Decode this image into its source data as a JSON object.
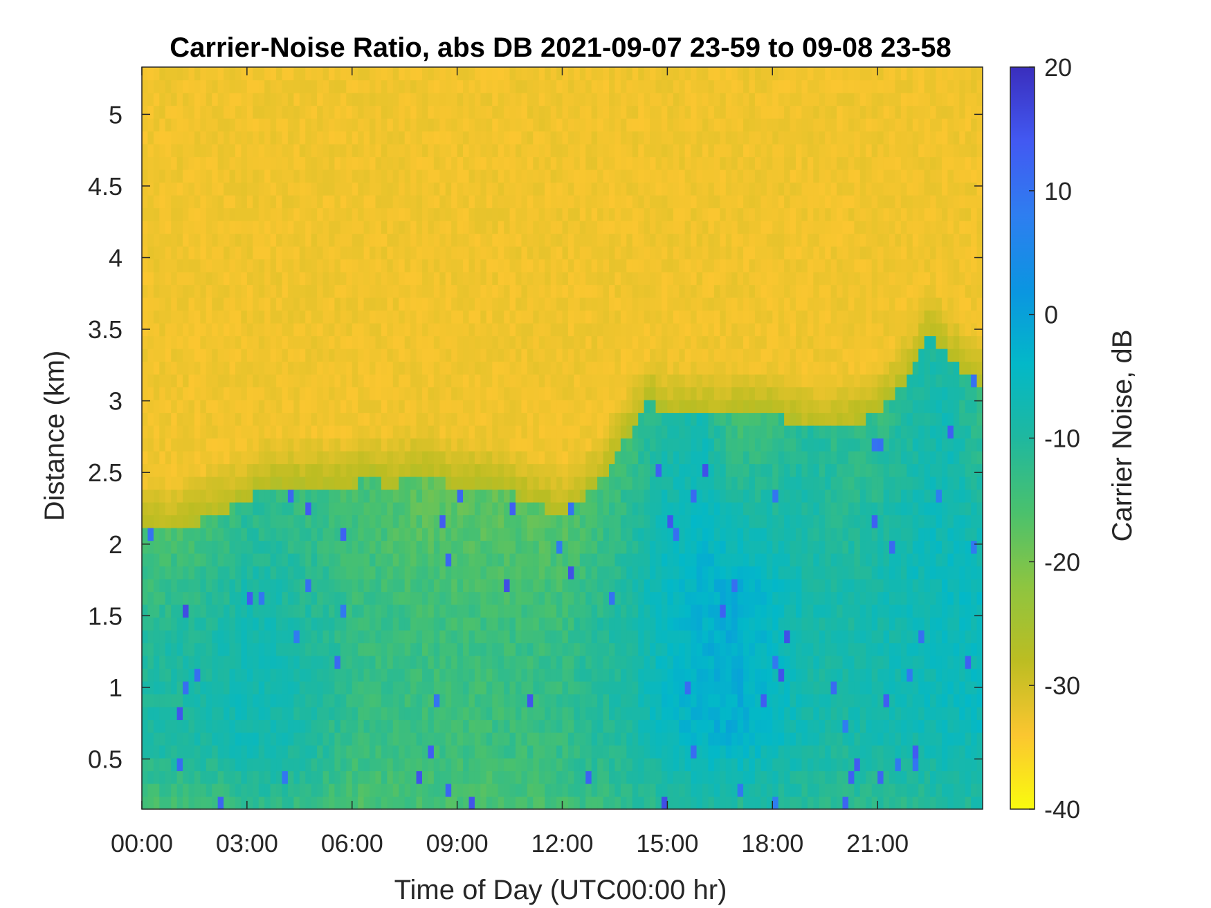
{
  "chart_data": {
    "type": "heatmap",
    "title": "Carrier-Noise Ratio, abs DB 2021-09-07 23-59 to 09-08 23-58",
    "xlabel": "Time of Day (UTC00:00 hr)",
    "ylabel": "Distance (km)",
    "colorbar_label": "Carrier Noise, dB",
    "x_range_hours": [
      0,
      24
    ],
    "y_range_km": [
      0.15,
      5.33
    ],
    "color_range_db": [
      -40,
      20
    ],
    "x_ticks": [
      {
        "hour": 0,
        "label": "00:00"
      },
      {
        "hour": 3,
        "label": "03:00"
      },
      {
        "hour": 6,
        "label": "06:00"
      },
      {
        "hour": 9,
        "label": "09:00"
      },
      {
        "hour": 12,
        "label": "12:00"
      },
      {
        "hour": 15,
        "label": "15:00"
      },
      {
        "hour": 18,
        "label": "18:00"
      },
      {
        "hour": 21,
        "label": "21:00"
      }
    ],
    "y_ticks": [
      {
        "km": 0.5,
        "label": "0.5"
      },
      {
        "km": 1,
        "label": "1"
      },
      {
        "km": 1.5,
        "label": "1.5"
      },
      {
        "km": 2,
        "label": "2"
      },
      {
        "km": 2.5,
        "label": "2.5"
      },
      {
        "km": 3,
        "label": "3"
      },
      {
        "km": 3.5,
        "label": "3.5"
      },
      {
        "km": 4,
        "label": "4"
      },
      {
        "km": 4.5,
        "label": "4.5"
      },
      {
        "km": 5,
        "label": "5"
      }
    ],
    "colorbar_ticks": [
      {
        "db": 20,
        "label": "20"
      },
      {
        "db": 10,
        "label": "10"
      },
      {
        "db": 0,
        "label": "0"
      },
      {
        "db": -10,
        "label": "-10"
      },
      {
        "db": -20,
        "label": "-20"
      },
      {
        "db": -30,
        "label": "-30"
      },
      {
        "db": -40,
        "label": "-40"
      }
    ],
    "colormap": [
      "#f9fb0e",
      "#fbc630",
      "#bcbd22",
      "#8ec540",
      "#4ac16d",
      "#1fb89f",
      "#03b8c8",
      "#0b95e1",
      "#2e7ef0",
      "#4259f2",
      "#3a2ebd"
    ],
    "noise_floor_db": -33,
    "boundary_layer_top_km": {
      "hours": [
        0,
        1,
        2,
        3,
        3.5,
        4,
        5,
        6,
        6.5,
        7,
        8,
        9,
        10,
        11,
        12,
        13,
        13.5,
        14,
        14.5,
        15,
        16,
        17,
        18,
        19,
        20,
        21,
        22,
        22.5,
        23,
        24
      ],
      "km": [
        2.1,
        2.1,
        2.2,
        2.3,
        2.4,
        2.4,
        2.4,
        2.4,
        2.5,
        2.4,
        2.5,
        2.4,
        2.4,
        2.3,
        2.2,
        2.4,
        2.6,
        2.8,
        3.0,
        2.9,
        2.9,
        2.9,
        2.9,
        2.8,
        2.8,
        2.9,
        3.2,
        3.5,
        3.3,
        3.1
      ]
    },
    "signal_db": {
      "hours": [
        0,
        2,
        3,
        4,
        6,
        8,
        10,
        12,
        14,
        15,
        16,
        17,
        18,
        19,
        20,
        21,
        22,
        23,
        24
      ],
      "near_surface_db": [
        -16,
        -15,
        -13,
        -12,
        -16,
        -15,
        -16,
        -15,
        -12,
        -11,
        -10,
        -11,
        -10,
        -11,
        -12,
        -12,
        -11,
        -10,
        -10
      ],
      "mid_layer_db": [
        -10,
        -9,
        -7,
        -8,
        -13,
        -14,
        -14,
        -13,
        -9,
        -5,
        -3,
        -2,
        -5,
        -8,
        -9,
        -8,
        -7,
        -6,
        -6
      ],
      "upper_layer_db": [
        -16,
        -15,
        -12,
        -13,
        -15,
        -18,
        -18,
        -17,
        -14,
        -10,
        -8,
        -16,
        -14,
        -10,
        -12,
        -13,
        -10,
        -9,
        -14
      ]
    }
  }
}
